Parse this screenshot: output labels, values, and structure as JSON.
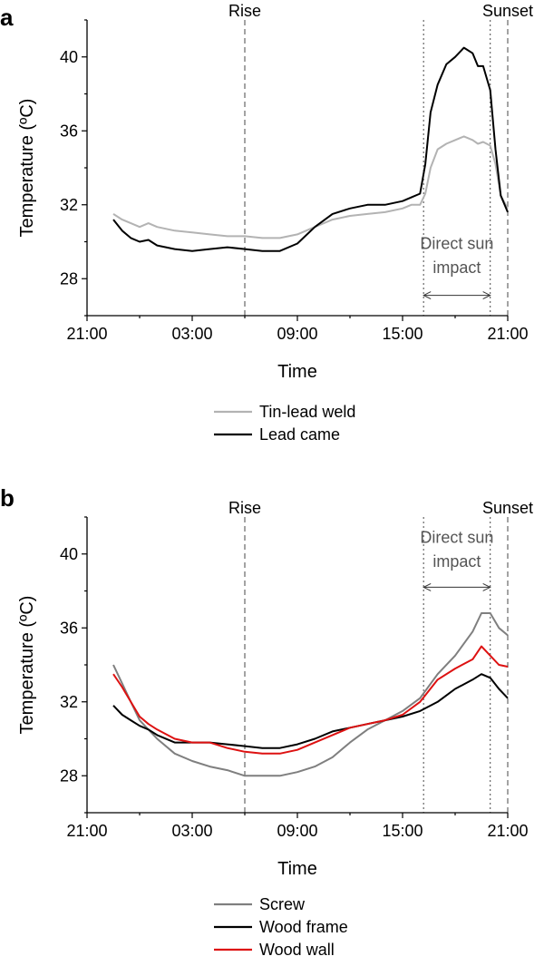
{
  "chart_data": [
    {
      "panel": "a",
      "type": "line",
      "xlabel": "Time",
      "ylabel": "Temperature (ºC)",
      "x_ticks": [
        "21:00",
        "03:00",
        "09:00",
        "15:00",
        "21:00"
      ],
      "x_tick_hours": [
        0,
        6,
        12,
        18,
        24
      ],
      "xlim_hours": [
        0,
        24
      ],
      "y_ticks": [
        28,
        32,
        36,
        40
      ],
      "ylim": [
        26,
        42
      ],
      "grid": false,
      "legend_placement": "below",
      "markers": [
        {
          "label": "Rise",
          "hour": 9,
          "style": "dashed"
        },
        {
          "label": "Sunset",
          "hour": 24,
          "style": "dashed"
        },
        {
          "label": "",
          "hour": 19.2,
          "style": "dotted"
        },
        {
          "label": "",
          "hour": 23,
          "style": "dotted"
        }
      ],
      "annotation": {
        "lines": [
          "Direct sun",
          "impact"
        ],
        "from_hour": 19.2,
        "to_hour": 23,
        "y_value": 27.1,
        "text_y": [
          29.6,
          28.3
        ]
      },
      "series": [
        {
          "name": "Tin-lead weld",
          "color": "#b3b3b3",
          "x": [
            1.5,
            2,
            2.5,
            3,
            3.5,
            4,
            5,
            6,
            7,
            8,
            9,
            10,
            11,
            12,
            13,
            14,
            15,
            16,
            17,
            18,
            18.5,
            19,
            19.3,
            19.6,
            20,
            20.5,
            21,
            21.5,
            22,
            22.3,
            22.6,
            23,
            23.3,
            23.6,
            24
          ],
          "values": [
            31.5,
            31.2,
            31.0,
            30.8,
            31.0,
            30.8,
            30.6,
            30.5,
            30.4,
            30.3,
            30.3,
            30.2,
            30.2,
            30.4,
            30.8,
            31.2,
            31.4,
            31.5,
            31.6,
            31.8,
            32.0,
            32.0,
            32.6,
            34.0,
            35.0,
            35.3,
            35.5,
            35.7,
            35.5,
            35.3,
            35.4,
            35.2,
            34.2,
            32.5,
            31.8
          ]
        },
        {
          "name": "Lead came",
          "color": "#000000",
          "x": [
            1.5,
            2,
            2.5,
            3,
            3.5,
            4,
            5,
            6,
            7,
            8,
            9,
            10,
            11,
            12,
            13,
            14,
            15,
            16,
            17,
            18,
            18.5,
            19,
            19.3,
            19.6,
            20,
            20.5,
            21,
            21.5,
            22,
            22.3,
            22.6,
            23,
            23.3,
            23.6,
            24
          ],
          "values": [
            31.2,
            30.6,
            30.2,
            30.0,
            30.1,
            29.8,
            29.6,
            29.5,
            29.6,
            29.7,
            29.6,
            29.5,
            29.5,
            29.9,
            30.8,
            31.5,
            31.8,
            32.0,
            32.0,
            32.2,
            32.4,
            32.6,
            34.2,
            37.0,
            38.5,
            39.6,
            40.0,
            40.5,
            40.2,
            39.5,
            39.5,
            38.2,
            35.0,
            32.5,
            31.6
          ]
        }
      ]
    },
    {
      "panel": "b",
      "type": "line",
      "xlabel": "Time",
      "ylabel": "Temperature (ºC)",
      "x_ticks": [
        "21:00",
        "03:00",
        "09:00",
        "15:00",
        "21:00"
      ],
      "x_tick_hours": [
        0,
        6,
        12,
        18,
        24
      ],
      "xlim_hours": [
        0,
        24
      ],
      "y_ticks": [
        28,
        32,
        36,
        40
      ],
      "ylim": [
        26,
        42
      ],
      "grid": false,
      "legend_placement": "below",
      "markers": [
        {
          "label": "Rise",
          "hour": 9,
          "style": "dashed"
        },
        {
          "label": "Sunset",
          "hour": 24,
          "style": "dashed"
        },
        {
          "label": "",
          "hour": 19.2,
          "style": "dotted"
        },
        {
          "label": "",
          "hour": 23,
          "style": "dotted"
        }
      ],
      "annotation": {
        "lines": [
          "Direct sun",
          "impact"
        ],
        "from_hour": 19.2,
        "to_hour": 23,
        "y_value": 38.2,
        "text_y": [
          40.6,
          39.3
        ]
      },
      "series": [
        {
          "name": "Screw",
          "color": "#7f7f7f",
          "x": [
            1.5,
            2,
            2.5,
            3,
            3.5,
            4,
            5,
            6,
            7,
            8,
            9,
            10,
            11,
            12,
            13,
            14,
            15,
            16,
            17,
            18,
            19,
            20,
            21,
            22,
            22.5,
            23,
            23.5,
            24
          ],
          "values": [
            34.0,
            33.0,
            32.0,
            31.0,
            30.5,
            30.0,
            29.2,
            28.8,
            28.5,
            28.3,
            28.0,
            28.0,
            28.0,
            28.2,
            28.5,
            29.0,
            29.8,
            30.5,
            31.0,
            31.5,
            32.2,
            33.5,
            34.5,
            35.8,
            36.8,
            36.8,
            36.0,
            35.6
          ]
        },
        {
          "name": "Wood frame",
          "color": "#000000",
          "x": [
            1.5,
            2,
            2.5,
            3,
            3.5,
            4,
            5,
            6,
            7,
            8,
            9,
            10,
            11,
            12,
            13,
            14,
            15,
            16,
            17,
            18,
            19,
            20,
            21,
            22,
            22.5,
            23,
            23.5,
            24
          ],
          "values": [
            31.8,
            31.3,
            31.0,
            30.7,
            30.5,
            30.2,
            29.8,
            29.8,
            29.8,
            29.7,
            29.6,
            29.5,
            29.5,
            29.7,
            30.0,
            30.4,
            30.6,
            30.8,
            31.0,
            31.2,
            31.5,
            32.0,
            32.7,
            33.2,
            33.5,
            33.3,
            32.7,
            32.2
          ]
        },
        {
          "name": "Wood wall",
          "color": "#dd1111",
          "x": [
            1.5,
            2,
            2.5,
            3,
            3.5,
            4,
            5,
            6,
            7,
            8,
            9,
            10,
            11,
            12,
            13,
            14,
            15,
            16,
            17,
            18,
            19,
            20,
            21,
            22,
            22.5,
            23,
            23.5,
            24
          ],
          "values": [
            33.5,
            32.8,
            32.0,
            31.2,
            30.8,
            30.5,
            30.0,
            29.8,
            29.8,
            29.5,
            29.3,
            29.2,
            29.2,
            29.4,
            29.8,
            30.2,
            30.6,
            30.8,
            31.0,
            31.3,
            32.0,
            33.2,
            33.8,
            34.3,
            35.0,
            34.5,
            34.0,
            33.9
          ]
        }
      ]
    }
  ]
}
